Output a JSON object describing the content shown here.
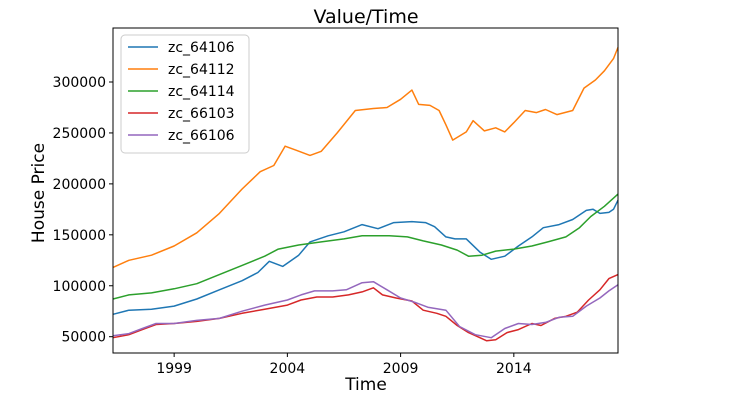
{
  "chart_data": {
    "type": "line",
    "title": "Value/Time",
    "xlabel": "Time",
    "ylabel": "House Price",
    "xlim": [
      1996.3,
      2018.6
    ],
    "ylim": [
      34000,
      353000
    ],
    "x_ticks": [
      1999,
      2004,
      2009,
      2014
    ],
    "y_ticks": [
      50000,
      100000,
      150000,
      200000,
      250000,
      300000
    ],
    "grid": false,
    "legend_position": "top-left",
    "series": [
      {
        "name": "zc_64106",
        "color": "#1f77b4",
        "points": [
          [
            1996.3,
            72000
          ],
          [
            1997,
            76000
          ],
          [
            1998,
            77000
          ],
          [
            1999,
            80000
          ],
          [
            2000,
            87000
          ],
          [
            2001,
            96000
          ],
          [
            2002,
            105000
          ],
          [
            2002.7,
            113000
          ],
          [
            2003.2,
            124000
          ],
          [
            2003.8,
            119000
          ],
          [
            2004.5,
            130000
          ],
          [
            2005,
            143000
          ],
          [
            2005.8,
            149000
          ],
          [
            2006.5,
            153000
          ],
          [
            2007.3,
            160000
          ],
          [
            2008,
            156000
          ],
          [
            2008.7,
            162000
          ],
          [
            2009.5,
            163000
          ],
          [
            2010.1,
            162000
          ],
          [
            2010.5,
            158000
          ],
          [
            2011,
            148000
          ],
          [
            2011.4,
            146000
          ],
          [
            2011.9,
            146000
          ],
          [
            2012.5,
            133000
          ],
          [
            2013,
            126000
          ],
          [
            2013.6,
            129000
          ],
          [
            2014.2,
            139000
          ],
          [
            2014.8,
            148000
          ],
          [
            2015.3,
            157000
          ],
          [
            2016,
            160000
          ],
          [
            2016.6,
            165000
          ],
          [
            2017.2,
            174000
          ],
          [
            2017.5,
            175000
          ],
          [
            2017.8,
            171000
          ],
          [
            2018.2,
            172000
          ],
          [
            2018.4,
            175000
          ],
          [
            2018.6,
            184000
          ]
        ]
      },
      {
        "name": "zc_64112",
        "color": "#ff7f0e",
        "points": [
          [
            1996.3,
            118000
          ],
          [
            1997,
            125000
          ],
          [
            1998,
            130000
          ],
          [
            1999,
            139000
          ],
          [
            2000,
            152000
          ],
          [
            2001,
            171000
          ],
          [
            2002,
            195000
          ],
          [
            2002.8,
            212000
          ],
          [
            2003.4,
            218000
          ],
          [
            2003.9,
            237000
          ],
          [
            2004.4,
            233000
          ],
          [
            2005,
            228000
          ],
          [
            2005.5,
            232000
          ],
          [
            2006.2,
            250000
          ],
          [
            2007,
            272000
          ],
          [
            2007.8,
            274000
          ],
          [
            2008.4,
            275000
          ],
          [
            2009,
            283000
          ],
          [
            2009.5,
            292000
          ],
          [
            2009.8,
            278000
          ],
          [
            2010.3,
            277000
          ],
          [
            2010.7,
            272000
          ],
          [
            2011,
            258000
          ],
          [
            2011.3,
            243000
          ],
          [
            2011.6,
            247000
          ],
          [
            2011.9,
            251000
          ],
          [
            2012.2,
            262000
          ],
          [
            2012.7,
            252000
          ],
          [
            2013.2,
            255000
          ],
          [
            2013.6,
            251000
          ],
          [
            2014,
            260000
          ],
          [
            2014.5,
            272000
          ],
          [
            2015,
            270000
          ],
          [
            2015.4,
            273000
          ],
          [
            2015.9,
            268000
          ],
          [
            2016.6,
            272000
          ],
          [
            2017.1,
            294000
          ],
          [
            2017.6,
            302000
          ],
          [
            2018,
            311000
          ],
          [
            2018.4,
            323000
          ],
          [
            2018.6,
            334000
          ]
        ]
      },
      {
        "name": "zc_64114",
        "color": "#2ca02c",
        "points": [
          [
            1996.3,
            87000
          ],
          [
            1997,
            91000
          ],
          [
            1998,
            93000
          ],
          [
            1999,
            97000
          ],
          [
            2000,
            102000
          ],
          [
            2001,
            111000
          ],
          [
            2002,
            120000
          ],
          [
            2003,
            129000
          ],
          [
            2003.6,
            136000
          ],
          [
            2004.5,
            140000
          ],
          [
            2005.5,
            143000
          ],
          [
            2006.5,
            146000
          ],
          [
            2007.3,
            149000
          ],
          [
            2008.5,
            149000
          ],
          [
            2009.3,
            148000
          ],
          [
            2010,
            144000
          ],
          [
            2010.8,
            140000
          ],
          [
            2011.5,
            135000
          ],
          [
            2012,
            129000
          ],
          [
            2012.6,
            130000
          ],
          [
            2013.2,
            134000
          ],
          [
            2014,
            136000
          ],
          [
            2014.8,
            139000
          ],
          [
            2015.5,
            143000
          ],
          [
            2016.3,
            148000
          ],
          [
            2016.9,
            157000
          ],
          [
            2017.4,
            168000
          ],
          [
            2018,
            178000
          ],
          [
            2018.6,
            190000
          ]
        ]
      },
      {
        "name": "zc_66103",
        "color": "#d62728",
        "points": [
          [
            1996.3,
            49000
          ],
          [
            1997,
            52000
          ],
          [
            1997.6,
            57000
          ],
          [
            1998.2,
            62000
          ],
          [
            1999,
            63000
          ],
          [
            2000,
            65000
          ],
          [
            2001,
            68000
          ],
          [
            2002,
            73000
          ],
          [
            2003,
            77000
          ],
          [
            2004,
            81000
          ],
          [
            2004.6,
            86000
          ],
          [
            2005.3,
            89000
          ],
          [
            2006,
            89000
          ],
          [
            2006.7,
            91000
          ],
          [
            2007.3,
            94000
          ],
          [
            2007.8,
            98000
          ],
          [
            2008.2,
            91000
          ],
          [
            2008.8,
            88000
          ],
          [
            2009.5,
            85000
          ],
          [
            2010,
            76000
          ],
          [
            2010.6,
            73000
          ],
          [
            2011,
            70000
          ],
          [
            2011.5,
            61000
          ],
          [
            2012,
            54000
          ],
          [
            2012.5,
            49000
          ],
          [
            2012.8,
            46000
          ],
          [
            2013.2,
            47000
          ],
          [
            2013.7,
            54000
          ],
          [
            2014.2,
            57000
          ],
          [
            2014.8,
            63000
          ],
          [
            2015.2,
            61000
          ],
          [
            2015.8,
            68000
          ],
          [
            2016.3,
            70000
          ],
          [
            2016.8,
            74000
          ],
          [
            2017.3,
            86000
          ],
          [
            2017.8,
            96000
          ],
          [
            2018.2,
            107000
          ],
          [
            2018.6,
            111000
          ]
        ]
      },
      {
        "name": "zc_66106",
        "color": "#9467bd",
        "points": [
          [
            1996.3,
            51000
          ],
          [
            1997,
            53000
          ],
          [
            1997.6,
            58000
          ],
          [
            1998.2,
            63000
          ],
          [
            1999,
            63000
          ],
          [
            2000,
            66000
          ],
          [
            2001,
            68000
          ],
          [
            2002,
            75000
          ],
          [
            2003,
            81000
          ],
          [
            2004,
            86000
          ],
          [
            2004.6,
            91000
          ],
          [
            2005.2,
            95000
          ],
          [
            2006,
            95000
          ],
          [
            2006.6,
            96000
          ],
          [
            2007.3,
            103000
          ],
          [
            2007.8,
            104000
          ],
          [
            2008.4,
            96000
          ],
          [
            2009,
            88000
          ],
          [
            2009.6,
            84000
          ],
          [
            2010.2,
            79000
          ],
          [
            2011,
            76000
          ],
          [
            2011.6,
            60000
          ],
          [
            2012.3,
            52000
          ],
          [
            2013,
            49000
          ],
          [
            2013.6,
            58000
          ],
          [
            2014.2,
            63000
          ],
          [
            2014.8,
            62000
          ],
          [
            2015.4,
            64000
          ],
          [
            2016,
            69000
          ],
          [
            2016.6,
            70000
          ],
          [
            2017.2,
            80000
          ],
          [
            2017.8,
            88000
          ],
          [
            2018.2,
            95000
          ],
          [
            2018.6,
            101000
          ]
        ]
      }
    ]
  }
}
